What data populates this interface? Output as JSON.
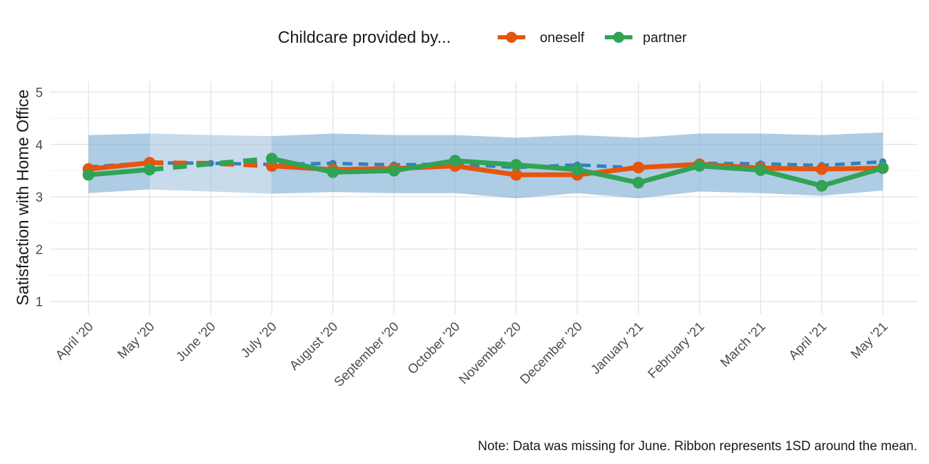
{
  "chart_data": {
    "type": "line",
    "ylabel": "Satisfaction with Home Office",
    "xlabel": "",
    "categories": [
      "April '20",
      "May '20",
      "June '20",
      "July '20",
      "August '20",
      "September '20",
      "October '20",
      "November '20",
      "December '20",
      "January '21",
      "February '21",
      "March '21",
      "April '21",
      "May '21"
    ],
    "ylim": [
      1,
      5
    ],
    "yticks": [
      "1",
      "2",
      "3",
      "4",
      "5"
    ],
    "grid": true,
    "legend": {
      "title": "Childcare provided by...",
      "position": "top",
      "entries": [
        "oneself",
        "partner"
      ]
    },
    "caption": "Note: Data was missing for June. Ribbon represents 1SD around the mean.",
    "mean_line": {
      "color": "#3182bd",
      "style": "dashed",
      "values": [
        3.57,
        3.65,
        3.64,
        3.62,
        3.64,
        3.61,
        3.63,
        3.56,
        3.61,
        3.55,
        3.64,
        3.63,
        3.6,
        3.67
      ]
    },
    "ribbon": {
      "color": "#6ea3cf",
      "upper": [
        4.18,
        4.21,
        4.18,
        4.16,
        4.21,
        4.18,
        4.18,
        4.13,
        4.18,
        4.13,
        4.21,
        4.21,
        4.18,
        4.23
      ],
      "lower": [
        3.07,
        3.14,
        3.1,
        3.06,
        3.09,
        3.07,
        3.07,
        2.97,
        3.07,
        2.97,
        3.1,
        3.07,
        3.02,
        3.12
      ]
    },
    "series": [
      {
        "name": "oneself",
        "color": "#e6550d",
        "values": [
          3.53,
          3.65,
          null,
          3.59,
          3.52,
          3.54,
          3.59,
          3.42,
          3.42,
          3.56,
          3.62,
          3.55,
          3.53,
          3.55
        ],
        "interpolated": [
          null,
          3.65,
          3.64,
          3.59,
          null,
          null,
          null,
          null,
          null,
          null,
          null,
          null,
          null,
          null
        ]
      },
      {
        "name": "partner",
        "color": "#31a354",
        "values": [
          3.42,
          3.52,
          null,
          3.73,
          3.47,
          3.5,
          3.69,
          3.61,
          3.52,
          3.27,
          3.59,
          3.51,
          3.21,
          3.55
        ],
        "interpolated": [
          null,
          3.52,
          3.63,
          3.73,
          null,
          null,
          null,
          null,
          null,
          null,
          null,
          null,
          null,
          null
        ]
      }
    ]
  }
}
